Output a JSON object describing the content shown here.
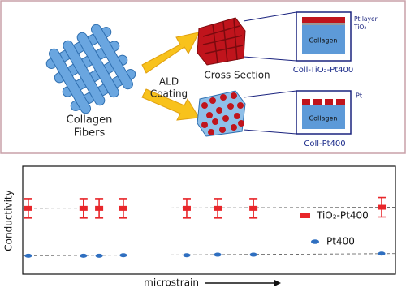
{
  "diagram": {
    "collagen_fibers": [
      "Collagen",
      "Fibers"
    ],
    "ald_coating": [
      "ALD",
      "Coating"
    ],
    "cross_section": "Cross Section",
    "inset_tio2": {
      "pt_layer": "Pt layer",
      "tio2": "TiO₂",
      "collagen": "Collagen",
      "caption": "Coll-TiO₂-Pt400"
    },
    "inset_pt": {
      "pt": "Pt",
      "collagen": "Collagen",
      "caption": "Coll-Pt400"
    }
  },
  "chart_data": {
    "type": "scatter",
    "xlabel": "microstrain",
    "ylabel": "Conductivity",
    "xlim": [
      0,
      100
    ],
    "ylim": [
      0,
      10
    ],
    "legend": "right",
    "series": [
      {
        "name": "TiO₂-Pt400",
        "color": "#e8262a",
        "x": [
          1.5,
          16.3,
          20.5,
          27,
          44,
          52.3,
          61.9,
          96.3
        ],
        "values": [
          6.1,
          6.1,
          6.1,
          6.1,
          6.1,
          6.1,
          6.1,
          6.2
        ],
        "errors": [
          0.9,
          0.9,
          0.9,
          0.9,
          0.9,
          0.9,
          0.9,
          0.9
        ]
      },
      {
        "name": "Pt400",
        "color": "#2f6fc0",
        "x": [
          1.5,
          16.3,
          20.5,
          27,
          44,
          52.3,
          61.9,
          96.3
        ],
        "values": [
          1.7,
          1.7,
          1.7,
          1.75,
          1.75,
          1.8,
          1.8,
          1.9
        ]
      }
    ]
  }
}
